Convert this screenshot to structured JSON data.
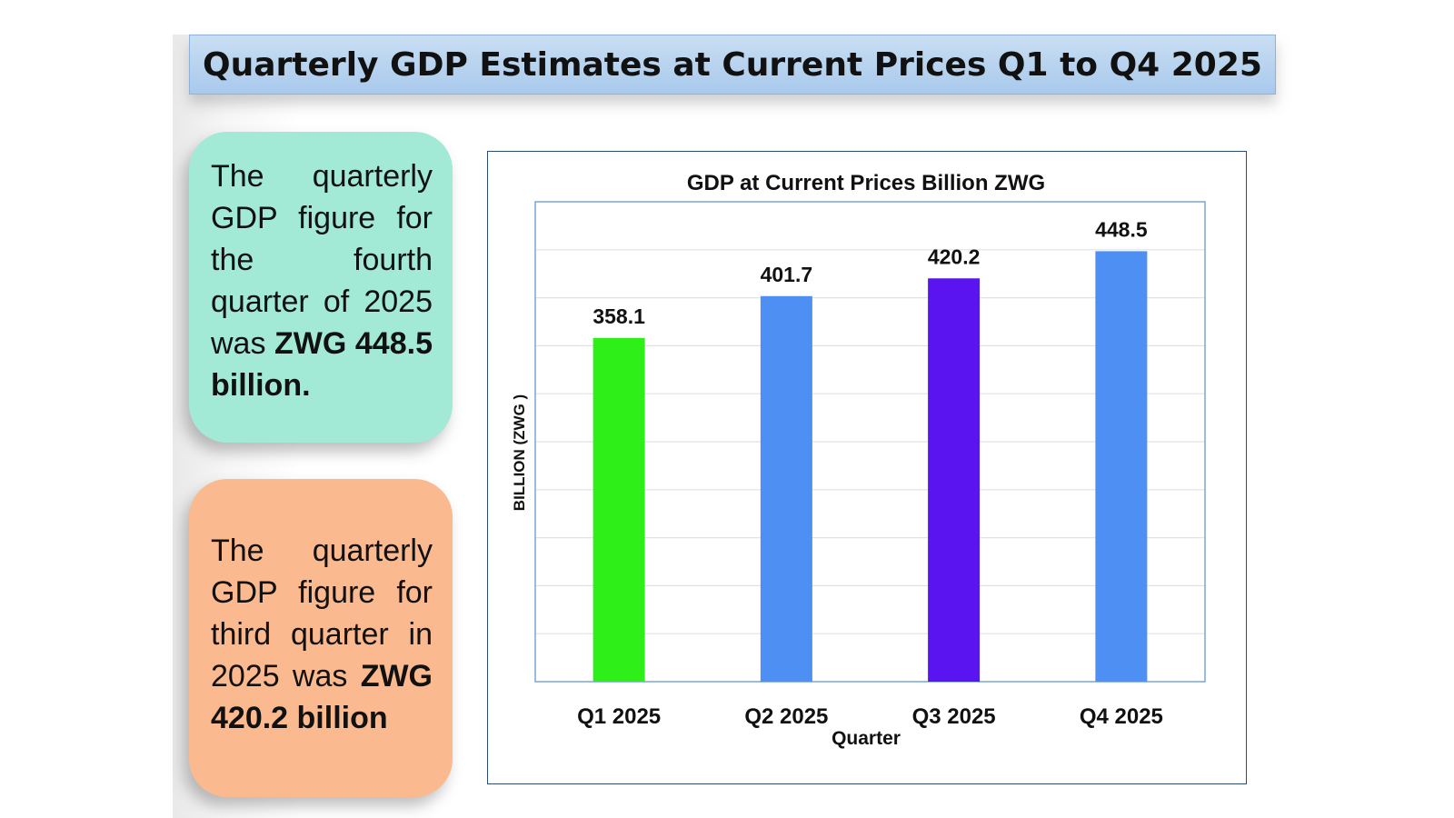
{
  "header": {
    "title": "Quarterly GDP Estimates at Current Prices Q1 to Q4 2025"
  },
  "cards": [
    {
      "text_plain": "The quarterly GDP figure for the fourth quarter of 2025 was ",
      "text_bold": "ZWG 448.5 billion."
    },
    {
      "text_plain": "The quarterly GDP figure for third quarter in 2025 was ",
      "text_bold": "ZWG 420.2 billion"
    }
  ],
  "chart_data": {
    "type": "bar",
    "title": "GDP at Current Prices Billion ZWG",
    "xlabel": "Quarter",
    "ylabel": "BILLION (ZWG )",
    "categories": [
      "Q1 2025",
      "Q2 2025",
      "Q3 2025",
      "Q4 2025"
    ],
    "values": [
      358.1,
      401.7,
      420.2,
      448.5
    ],
    "data_labels": [
      "358.1",
      "401.7",
      "420.2",
      "448.5"
    ],
    "bar_colors": [
      "#2ef018",
      "#4d8ff2",
      "#5a14f0",
      "#4d8ff2"
    ],
    "ylim": [
      0,
      500
    ],
    "grid": true,
    "legend": "none"
  }
}
